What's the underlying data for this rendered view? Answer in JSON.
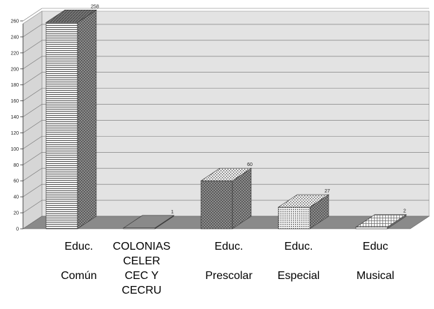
{
  "chart_data": {
    "type": "bar",
    "style": "3d-column",
    "title": "",
    "xlabel": "",
    "ylabel": "",
    "ylim": [
      0,
      260
    ],
    "y_ticks": [
      0,
      20,
      40,
      60,
      80,
      100,
      120,
      140,
      160,
      180,
      200,
      220,
      240,
      260
    ],
    "grid": true,
    "legend": "none",
    "categories": [
      {
        "lines": [
          "Educ.",
          "",
          "Común",
          ""
        ]
      },
      {
        "lines": [
          "COLONIAS",
          "CELER",
          "CEC Y",
          "CECRU"
        ]
      },
      {
        "lines": [
          "Educ.",
          "",
          "Prescolar",
          ""
        ]
      },
      {
        "lines": [
          "Educ.",
          "",
          "Especial",
          ""
        ]
      },
      {
        "lines": [
          "Educ",
          "",
          "Musical",
          ""
        ]
      }
    ],
    "values": [
      258,
      1,
      60,
      27,
      2
    ],
    "data_labels": [
      "258",
      "1",
      "60",
      "27",
      "2"
    ],
    "colors": {
      "wall": "#e3e3e3",
      "floor": "#8a8a8a",
      "grid": "#707070",
      "bar_front": "#ececec",
      "bar_side": "#6a6a6a",
      "bar_top": "#a9a9a9"
    }
  }
}
